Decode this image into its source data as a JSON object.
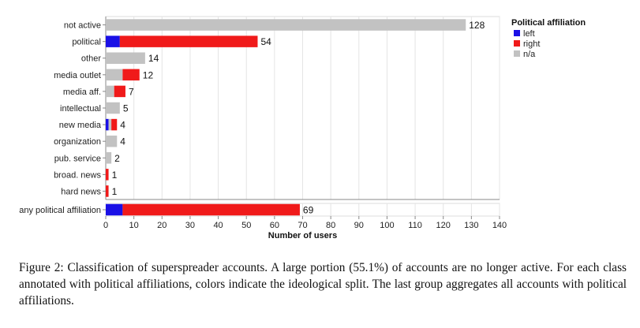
{
  "chart_data": {
    "type": "bar",
    "stacked": true,
    "orientation": "horizontal",
    "categories": [
      "not active",
      "political",
      "other",
      "media outlet",
      "media aff.",
      "intellectual",
      "new media",
      "organization",
      "pub. service",
      "broad. news",
      "hard news"
    ],
    "series": [
      {
        "name": "left",
        "color": "#1a10e6",
        "values": [
          0,
          5,
          0,
          0,
          0,
          0,
          1,
          0,
          0,
          0,
          0
        ]
      },
      {
        "name": "n/a",
        "color": "#c2c2c2",
        "values": [
          128,
          0,
          14,
          6,
          3,
          5,
          1,
          4,
          2,
          0,
          0
        ],
        "order_note": "drawn where visible"
      },
      {
        "name": "right",
        "color": "#f01a1a",
        "values": [
          0,
          49,
          0,
          6,
          4,
          0,
          2,
          0,
          0,
          1,
          1
        ]
      }
    ],
    "totals": [
      "128",
      "54",
      "14",
      "12",
      "7",
      "5",
      "4",
      "4",
      "2",
      "1",
      "1"
    ],
    "aggregate": {
      "category": "any political affiliation",
      "left": 6,
      "na": 0,
      "right": 63,
      "total": "69"
    },
    "xlabel": "Number of users",
    "xlim": [
      0,
      140
    ],
    "xticks": [
      "0",
      "10",
      "20",
      "30",
      "40",
      "50",
      "60",
      "70",
      "80",
      "90",
      "100",
      "110",
      "120",
      "130",
      "140"
    ],
    "grid": true,
    "legend": {
      "title": "Political affiliation",
      "placement": "right",
      "entries": [
        "left",
        "right",
        "n/a"
      ]
    }
  },
  "caption": "Figure 2: Classification of superspreader accounts. A large portion (55.1%) of accounts are no longer active. For each class annotated with political affiliations, colors indicate the ideological split. The last group aggregates all accounts with political affiliations."
}
